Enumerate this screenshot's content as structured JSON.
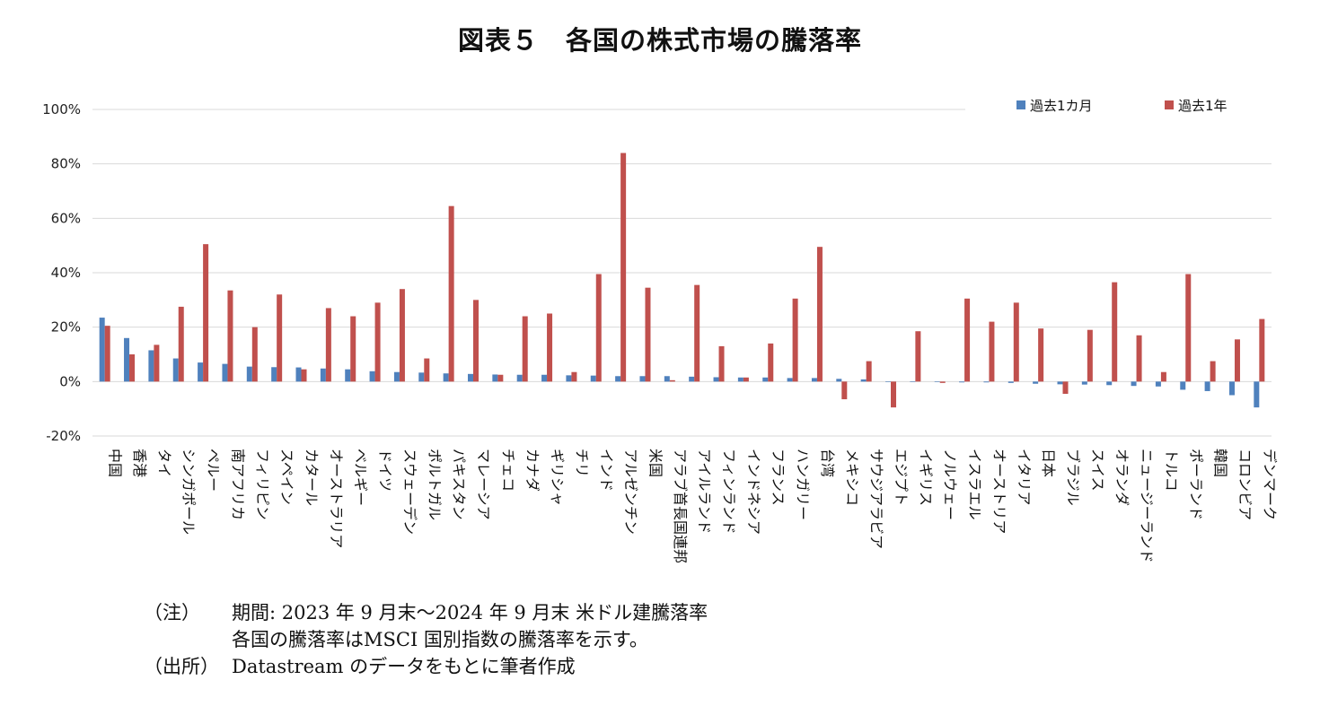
{
  "title": "図表５　各国の株式市場の騰落率",
  "colors": {
    "series1": "#4f81bd",
    "series2": "#c0504d",
    "grid": "#d9d9d9"
  },
  "chart_data": {
    "type": "bar",
    "yticks": [
      "100%",
      "80%",
      "60%",
      "40%",
      "20%",
      "0%",
      "-20%"
    ],
    "ylim": [
      -20,
      100
    ],
    "grid": true,
    "legend_position": "top-right",
    "categories": [
      "中国",
      "香港",
      "タイ",
      "シンガポール",
      "ペルー",
      "南アフリカ",
      "フィリピン",
      "スペイン",
      "カタール",
      "オーストラリア",
      "ベルギー",
      "ドイツ",
      "スウェーデン",
      "ポルトガル",
      "パキスタン",
      "マレーシア",
      "チェコ",
      "カナダ",
      "ギリシャ",
      "チリ",
      "インド",
      "アルゼンチン",
      "米国",
      "アラブ首長国連邦",
      "アイルランド",
      "フィンランド",
      "インドネシア",
      "フランス",
      "ハンガリー",
      "台湾",
      "メキシコ",
      "サウジアラビア",
      "エジプト",
      "イギリス",
      "ノルウェー",
      "イスラエル",
      "オーストリア",
      "イタリア",
      "日本",
      "ブラジル",
      "スイス",
      "オランダ",
      "ニュージーランド",
      "トルコ",
      "ポーランド",
      "韓国",
      "コロンビア",
      "デンマーク"
    ],
    "series": [
      {
        "name": "過去1カ月",
        "values": [
          23.5,
          16.0,
          11.5,
          8.5,
          7.0,
          6.5,
          5.5,
          5.3,
          5.2,
          4.8,
          4.5,
          3.8,
          3.5,
          3.3,
          3.0,
          2.8,
          2.6,
          2.5,
          2.5,
          2.3,
          2.2,
          2.0,
          2.0,
          2.0,
          1.8,
          1.6,
          1.5,
          1.5,
          1.3,
          1.3,
          1.0,
          0.8,
          -0.2,
          -0.2,
          -0.2,
          -0.3,
          -0.3,
          -0.5,
          -0.8,
          -1.0,
          -1.1,
          -1.3,
          -1.6,
          -1.8,
          -3.0,
          -3.5,
          -5.0,
          -9.5
        ]
      },
      {
        "name": "過去1年",
        "values": [
          20.5,
          10.0,
          13.5,
          27.5,
          50.5,
          33.5,
          20.0,
          32.0,
          4.5,
          27.0,
          24.0,
          29.0,
          34.0,
          8.5,
          64.5,
          30.0,
          2.5,
          24.0,
          25.0,
          3.5,
          39.5,
          84.0,
          34.5,
          0.5,
          35.5,
          13.0,
          1.5,
          14.0,
          30.5,
          49.5,
          -6.5,
          7.5,
          -9.5,
          18.5,
          -0.5,
          30.5,
          22.0,
          29.0,
          19.5,
          -4.5,
          19.0,
          36.5,
          17.0,
          3.5,
          39.5,
          7.5,
          15.5,
          23.0
        ]
      }
    ]
  },
  "notes": [
    {
      "label": "（注）",
      "text": "期間: 2023 年 9 月末～2024 年 9 月末 米ドル建騰落率"
    },
    {
      "label": "",
      "text": "各国の騰落率はMSCI 国別指数の騰落率を示す。"
    },
    {
      "label": "（出所）",
      "text": "Datastream のデータをもとに筆者作成"
    }
  ]
}
